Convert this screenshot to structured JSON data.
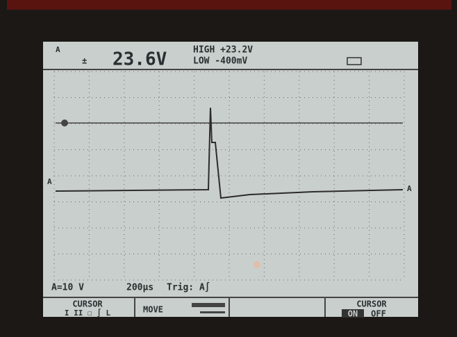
{
  "header": {
    "channel": "A",
    "reading": "23.6V",
    "high": "HIGH +23.2V",
    "low": "LOW -400mV"
  },
  "markers": {
    "left": "A",
    "right": "A"
  },
  "status": {
    "scale": "A=10 V",
    "timebase": "200µs",
    "trigger": "Trig: A∫"
  },
  "softkeys": [
    {
      "title": "CURSOR",
      "options": "I II ☐ ∫ L"
    },
    {
      "title": "MOVE"
    },
    {
      "title": ""
    },
    {
      "title": "CURSOR",
      "on": "ON",
      "off": "OFF"
    }
  ]
}
